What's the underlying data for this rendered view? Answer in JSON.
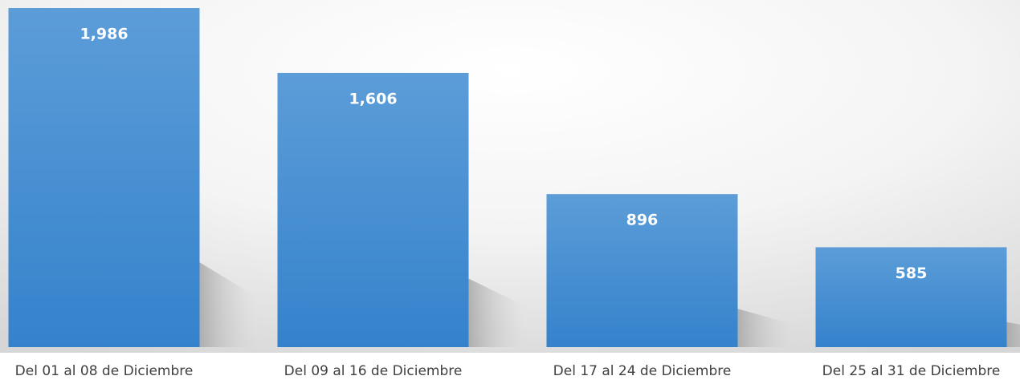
{
  "chart_data": {
    "type": "bar",
    "categories": [
      "Del 01 al 08 de Diciembre",
      "Del 09 al 16 de Diciembre",
      "Del 17 al 24 de Diciembre",
      "Del 25 al 31 de Diciembre"
    ],
    "values": [
      1986,
      1606,
      896,
      585
    ],
    "value_labels": [
      "1,986",
      "1,606",
      "896",
      "585"
    ],
    "color": "#4a8fd4"
  }
}
